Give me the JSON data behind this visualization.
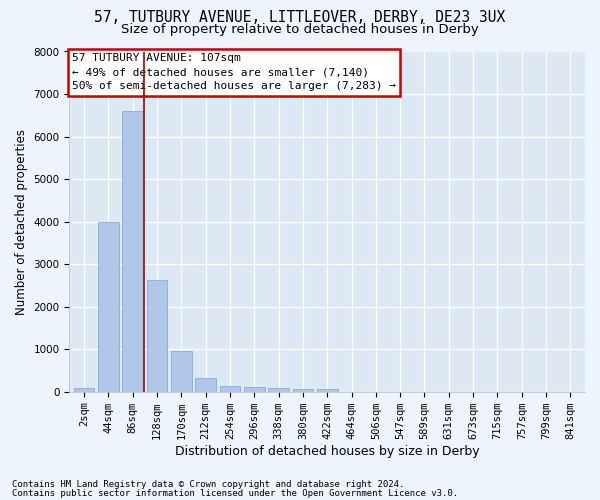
{
  "title_line1": "57, TUTBURY AVENUE, LITTLEOVER, DERBY, DE23 3UX",
  "title_line2": "Size of property relative to detached houses in Derby",
  "xlabel": "Distribution of detached houses by size in Derby",
  "ylabel": "Number of detached properties",
  "footnote1": "Contains HM Land Registry data © Crown copyright and database right 2024.",
  "footnote2": "Contains public sector information licensed under the Open Government Licence v3.0.",
  "bar_labels": [
    "2sqm",
    "44sqm",
    "86sqm",
    "128sqm",
    "170sqm",
    "212sqm",
    "254sqm",
    "296sqm",
    "338sqm",
    "380sqm",
    "422sqm",
    "464sqm",
    "506sqm",
    "547sqm",
    "589sqm",
    "631sqm",
    "673sqm",
    "715sqm",
    "757sqm",
    "799sqm",
    "841sqm"
  ],
  "bar_values": [
    80,
    4000,
    6600,
    2620,
    960,
    320,
    145,
    120,
    80,
    60,
    60,
    0,
    0,
    0,
    0,
    0,
    0,
    0,
    0,
    0,
    0
  ],
  "bar_color": "#aec6e8",
  "bar_edge_color": "#7aa8d2",
  "plot_bg_color": "#dde8f5",
  "fig_bg_color": "#eef4fc",
  "grid_color": "#ffffff",
  "annotation_line1": "57 TUTBURY AVENUE: 107sqm",
  "annotation_line2": "← 49% of detached houses are smaller (7,140)",
  "annotation_line3": "50% of semi-detached houses are larger (7,283) →",
  "annotation_box_facecolor": "#ffffff",
  "annotation_box_edgecolor": "#cc0000",
  "vline_color": "#aa0000",
  "vline_x": 2.45,
  "ylim_max": 8000,
  "yticks": [
    0,
    1000,
    2000,
    3000,
    4000,
    5000,
    6000,
    7000,
    8000
  ],
  "title1_fontsize": 10.5,
  "title2_fontsize": 9.5,
  "ylabel_fontsize": 8.5,
  "xlabel_fontsize": 9,
  "tick_fontsize": 7.5,
  "annotation_fontsize": 8,
  "footnote_fontsize": 6.5
}
